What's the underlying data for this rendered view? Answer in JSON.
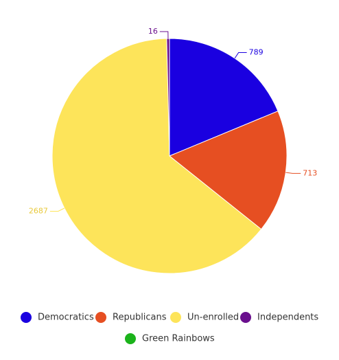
{
  "chart_data": {
    "type": "pie",
    "categories": [
      "Democratics",
      "Republicans",
      "Un-enrolled",
      "Independents",
      "Green Rainbows"
    ],
    "values": [
      789,
      713,
      2687,
      16,
      0
    ],
    "colors": [
      "#1a00e0",
      "#e64f22",
      "#fde45a",
      "#6a0f8e",
      "#1bb31b"
    ],
    "legend": "bottom"
  }
}
